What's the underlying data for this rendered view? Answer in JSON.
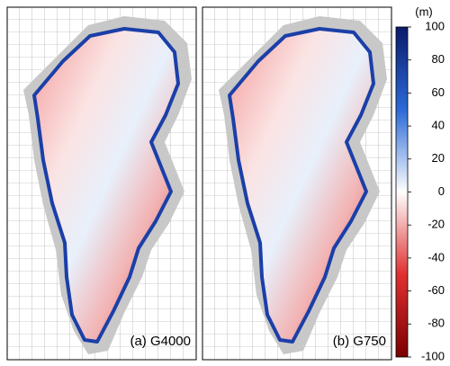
{
  "panels": [
    {
      "label": "(a) G4000"
    },
    {
      "label": "(b) G750"
    }
  ],
  "colorbar": {
    "unit": "(m)",
    "lim": [
      -100,
      100
    ],
    "ticks": [
      100,
      80,
      60,
      40,
      20,
      0,
      -20,
      -40,
      -60,
      -80,
      -100
    ]
  }
}
